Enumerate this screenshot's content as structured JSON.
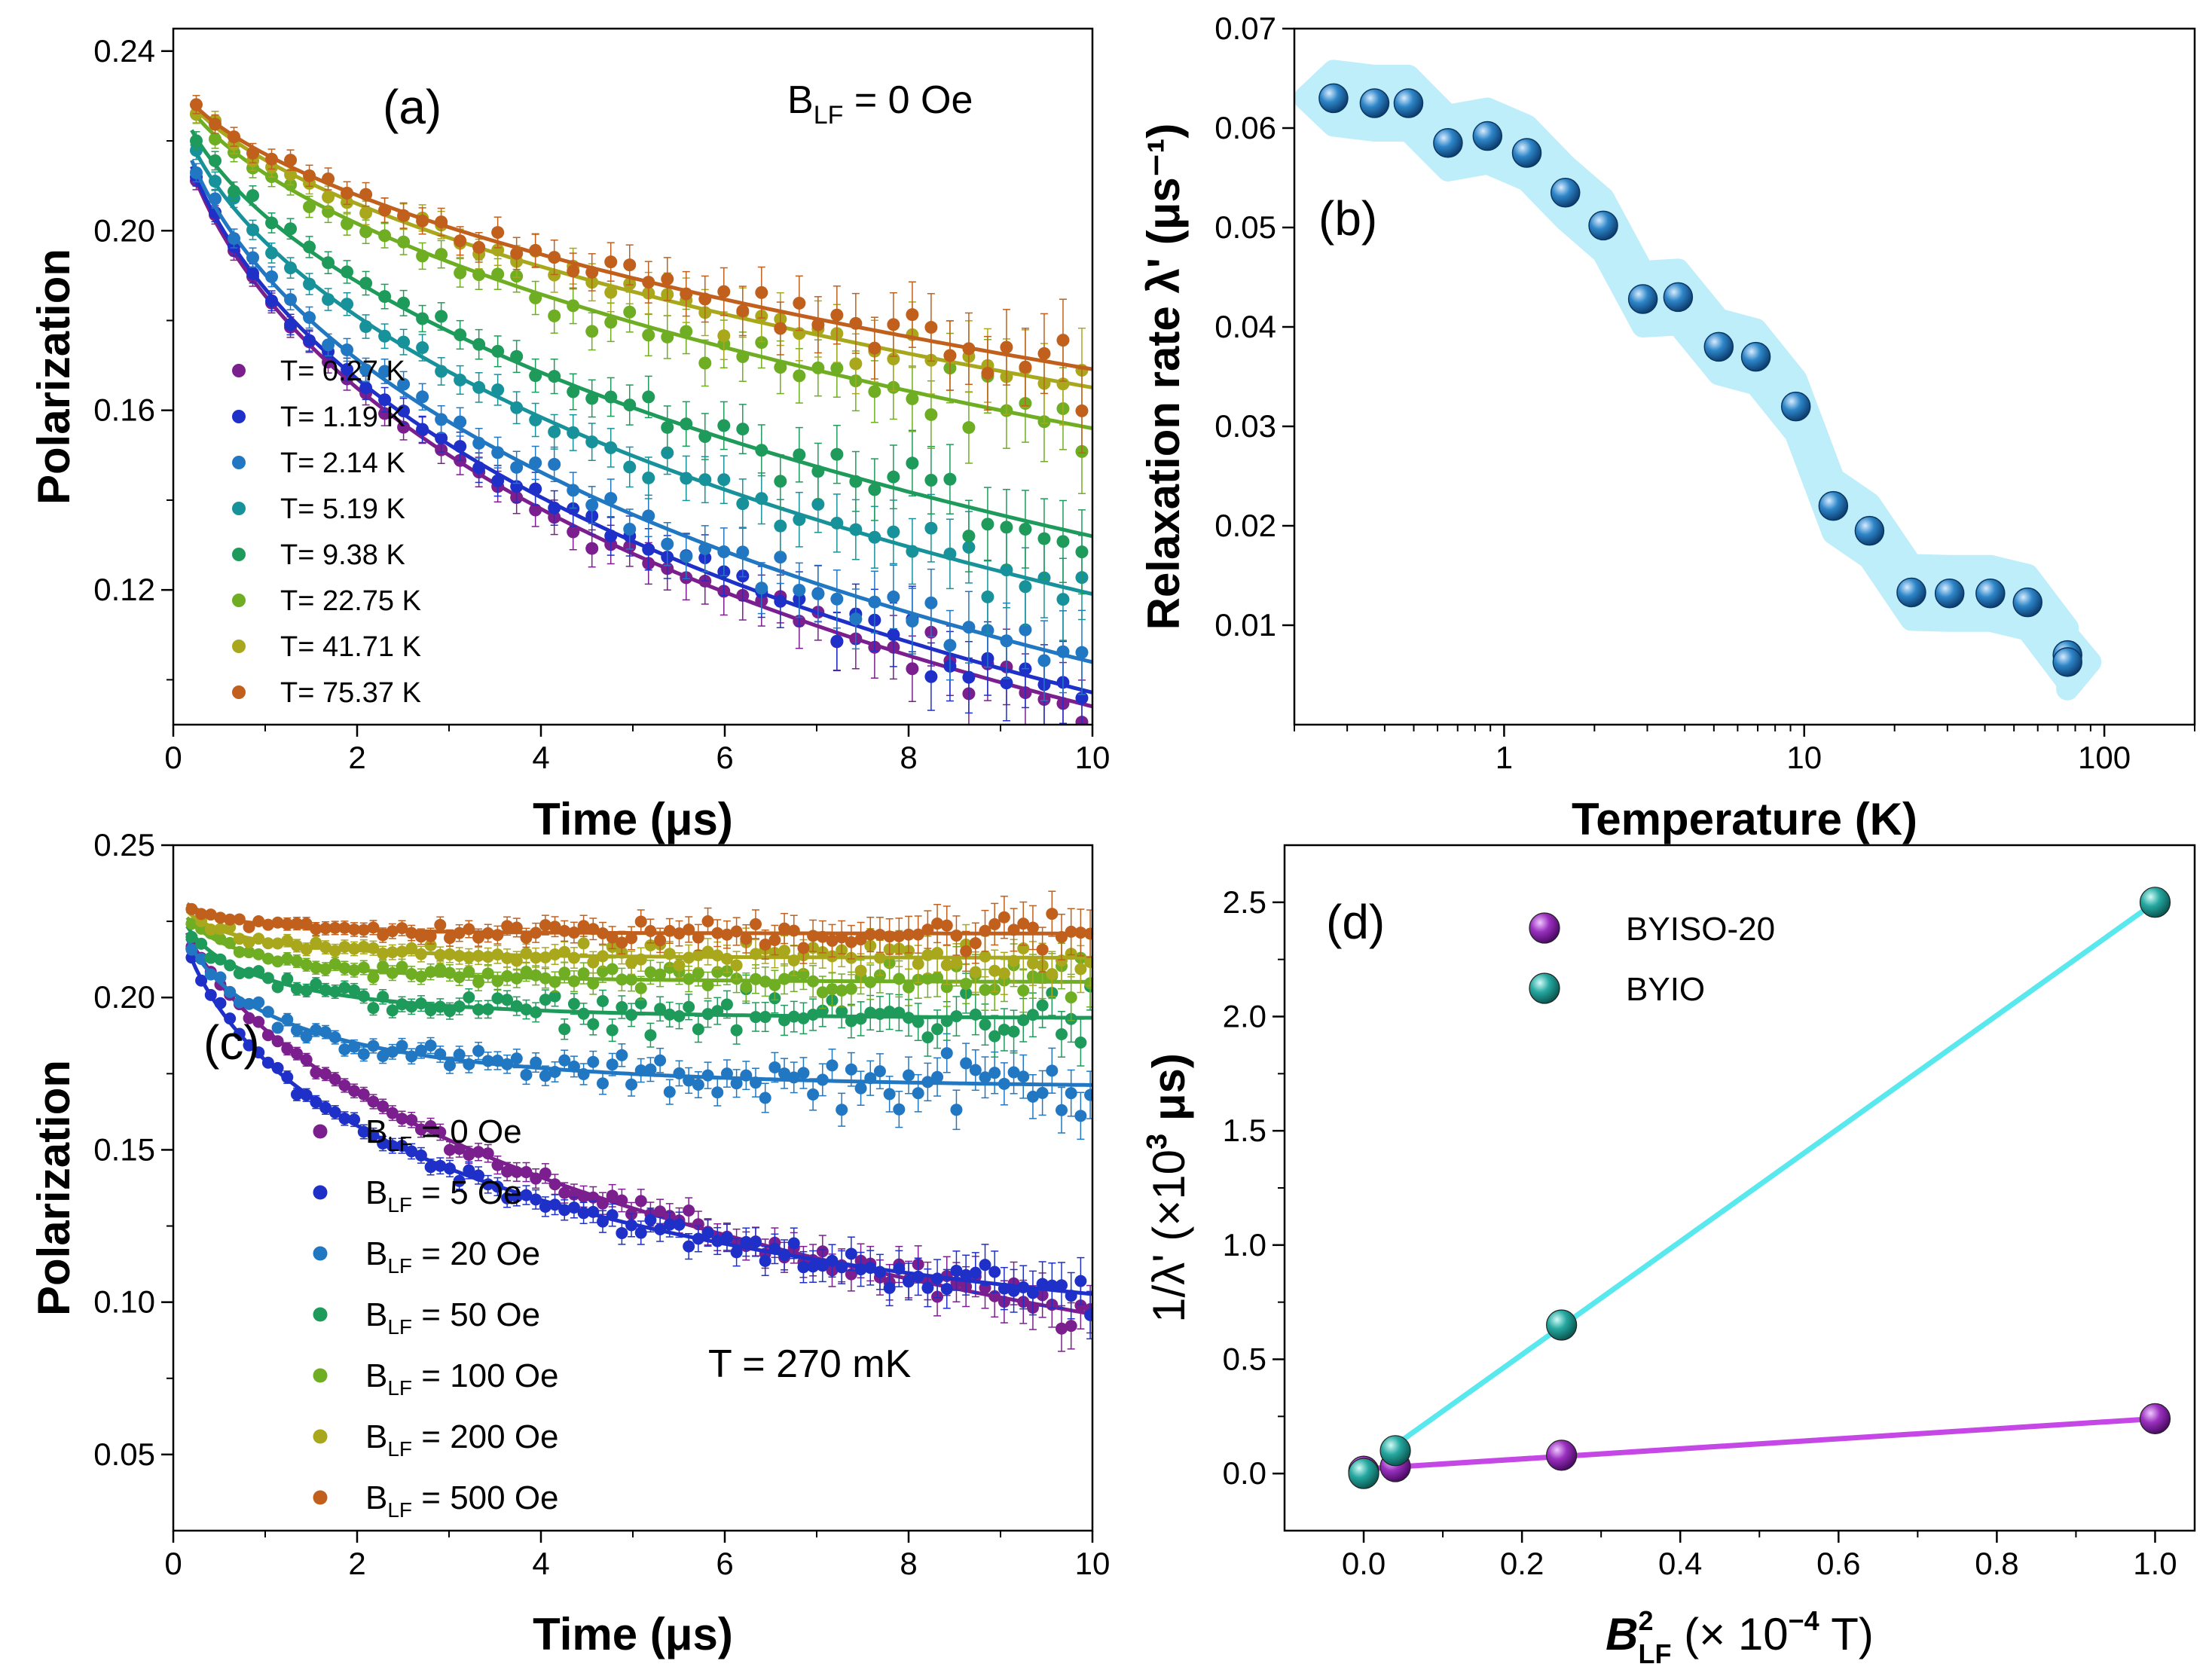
{
  "chart_data": [
    {
      "panel": "a",
      "type": "scatter",
      "panel_label": "(a)",
      "annotation": "B_LF = 0 Oe",
      "annotation_parts": {
        "main": "B",
        "sub": "LF",
        "rest": " = 0 Oe"
      },
      "xlabel": "Time (μs)",
      "ylabel": "Polarization",
      "xlim": [
        0,
        10
      ],
      "ylim": [
        0.09,
        0.245
      ],
      "xticks": [
        "0",
        "2",
        "4",
        "6",
        "8",
        "10"
      ],
      "yticks": [
        "0.12",
        "0.16",
        "0.20",
        "0.24"
      ],
      "series": [
        {
          "name": "T= 0.27 K",
          "color": "#7B1F8E",
          "fit": {
            "a": 0.233,
            "l": 0.085,
            "b": 0.6
          }
        },
        {
          "name": "T= 1.19 K",
          "color": "#1E30C8",
          "fit": {
            "a": 0.233,
            "l": 0.08,
            "b": 0.6
          }
        },
        {
          "name": "T= 2.14 K",
          "color": "#2177C2",
          "fit": {
            "a": 0.233,
            "l": 0.07,
            "b": 0.6
          }
        },
        {
          "name": "T= 5.19 K",
          "color": "#17929A",
          "fit": {
            "a": 0.234,
            "l": 0.052,
            "b": 0.6
          }
        },
        {
          "name": "T= 9.38 K",
          "color": "#1E9B5A",
          "fit": {
            "a": 0.235,
            "l": 0.04,
            "b": 0.6
          }
        },
        {
          "name": "T= 22.75 K",
          "color": "#6FAE23",
          "fit": {
            "a": 0.236,
            "l": 0.023,
            "b": 0.6
          }
        },
        {
          "name": "T= 41.71 K",
          "color": "#A9A81D",
          "fit": {
            "a": 0.236,
            "l": 0.018,
            "b": 0.6
          }
        },
        {
          "name": "T= 75.37 K",
          "color": "#C0601C",
          "fit": {
            "a": 0.236,
            "l": 0.016,
            "b": 0.6
          }
        }
      ]
    },
    {
      "panel": "b",
      "type": "scatter",
      "panel_label": "(b)",
      "xlabel": "Temperature (K)",
      "ylabel": "Relaxation rate λ' (μs⁻¹)",
      "xscale": "log",
      "xlim": [
        0.2,
        200
      ],
      "ylim": [
        0.0,
        0.07
      ],
      "xticks": [
        "1",
        "10",
        "100"
      ],
      "yticks": [
        "0.01",
        "0.02",
        "0.03",
        "0.04",
        "0.05",
        "0.06",
        "0.07"
      ],
      "color": "#1B6FB0",
      "band_color": "#BDEEFA",
      "x": [
        0.27,
        0.37,
        0.48,
        0.65,
        0.88,
        1.19,
        1.6,
        2.14,
        2.9,
        3.8,
        5.19,
        6.9,
        9.38,
        12.5,
        16.5,
        22.75,
        30.5,
        41.71,
        55.5,
        75.37,
        75.37
      ],
      "y": [
        0.063,
        0.0625,
        0.0625,
        0.0585,
        0.0592,
        0.0575,
        0.0535,
        0.0502,
        0.0428,
        0.043,
        0.038,
        0.037,
        0.032,
        0.022,
        0.0195,
        0.0133,
        0.0132,
        0.0132,
        0.0123,
        0.007,
        0.0063
      ]
    },
    {
      "panel": "c",
      "type": "scatter",
      "panel_label": "(c)",
      "annotation": "T = 270 mK",
      "xlabel": "Time (μs)",
      "ylabel": "Polarization",
      "xlim": [
        0,
        10
      ],
      "ylim": [
        0.025,
        0.25
      ],
      "xticks": [
        "0",
        "2",
        "4",
        "6",
        "8",
        "10"
      ],
      "yticks": [
        "0.05",
        "0.10",
        "0.15",
        "0.20",
        "0.25"
      ],
      "series": [
        {
          "name": "B_LF = 0 Oe",
          "label_rest": " = 0 Oe",
          "color": "#7B1F8E",
          "fit": {
            "a": 0.238,
            "l": 0.085,
            "b": 0.6,
            "c": 0
          }
        },
        {
          "name": "B_LF = 5 Oe",
          "label_rest": " = 5 Oe",
          "color": "#1E30C8",
          "fit": {
            "a": 0.238,
            "l": 0.26,
            "b": 0.6,
            "c": 0.075
          }
        },
        {
          "name": "B_LF = 20 Oe",
          "label_rest": " = 20 Oe",
          "color": "#2177C2",
          "fit": {
            "a": 0.238,
            "l": 1.0,
            "b": 0.6,
            "c": 0.17
          }
        },
        {
          "name": "B_LF = 50 Oe",
          "label_rest": " = 50 Oe",
          "color": "#1E9B5A",
          "fit": {
            "a": 0.238,
            "l": 1.4,
            "b": 0.6,
            "c": 0.193
          }
        },
        {
          "name": "B_LF = 100 Oe",
          "label_rest": " = 100 Oe",
          "color": "#6FAE23",
          "fit": {
            "a": 0.238,
            "l": 1.7,
            "b": 0.6,
            "c": 0.205
          }
        },
        {
          "name": "B_LF = 200 Oe",
          "label_rest": " = 200 Oe",
          "color": "#A9A81D",
          "fit": {
            "a": 0.238,
            "l": 2.0,
            "b": 0.6,
            "c": 0.213
          }
        },
        {
          "name": "B_LF = 500 Oe",
          "label_rest": " = 500 Oe",
          "color": "#C0601C",
          "fit": {
            "a": 0.238,
            "l": 2.5,
            "b": 0.6,
            "c": 0.221
          }
        }
      ],
      "legend_main": "B",
      "legend_sub": "LF"
    },
    {
      "panel": "d",
      "type": "scatter",
      "panel_label": "(d)",
      "xlabel": "B²_LF (× 10⁻⁴ T)",
      "ylabel": "1/λ' (×10³ μs)",
      "xlim": [
        -0.1,
        1.05
      ],
      "ylim": [
        -0.25,
        2.75
      ],
      "xticks": [
        "0.0",
        "0.2",
        "0.4",
        "0.6",
        "0.8",
        "1.0"
      ],
      "yticks": [
        "0.0",
        "0.5",
        "1.0",
        "1.5",
        "2.0",
        "2.5"
      ],
      "series": [
        {
          "name": "BYISO-20",
          "color": "#8E1FAF",
          "line_color": "#C447E6",
          "x": [
            0.0,
            0.04,
            0.25,
            1.0
          ],
          "y": [
            0.01,
            0.03,
            0.08,
            0.24
          ],
          "fit": [
            [
              0.0,
              0.02
            ],
            [
              1.0,
              0.24
            ]
          ]
        },
        {
          "name": "BYIO",
          "color": "#1C9A96",
          "line_color": "#58E8EE",
          "x": [
            0.0,
            0.04,
            0.25,
            1.0
          ],
          "y": [
            0.0,
            0.1,
            0.65,
            2.5
          ],
          "fit": [
            [
              0.03,
              0.1
            ],
            [
              1.0,
              2.5
            ]
          ]
        }
      ]
    }
  ]
}
